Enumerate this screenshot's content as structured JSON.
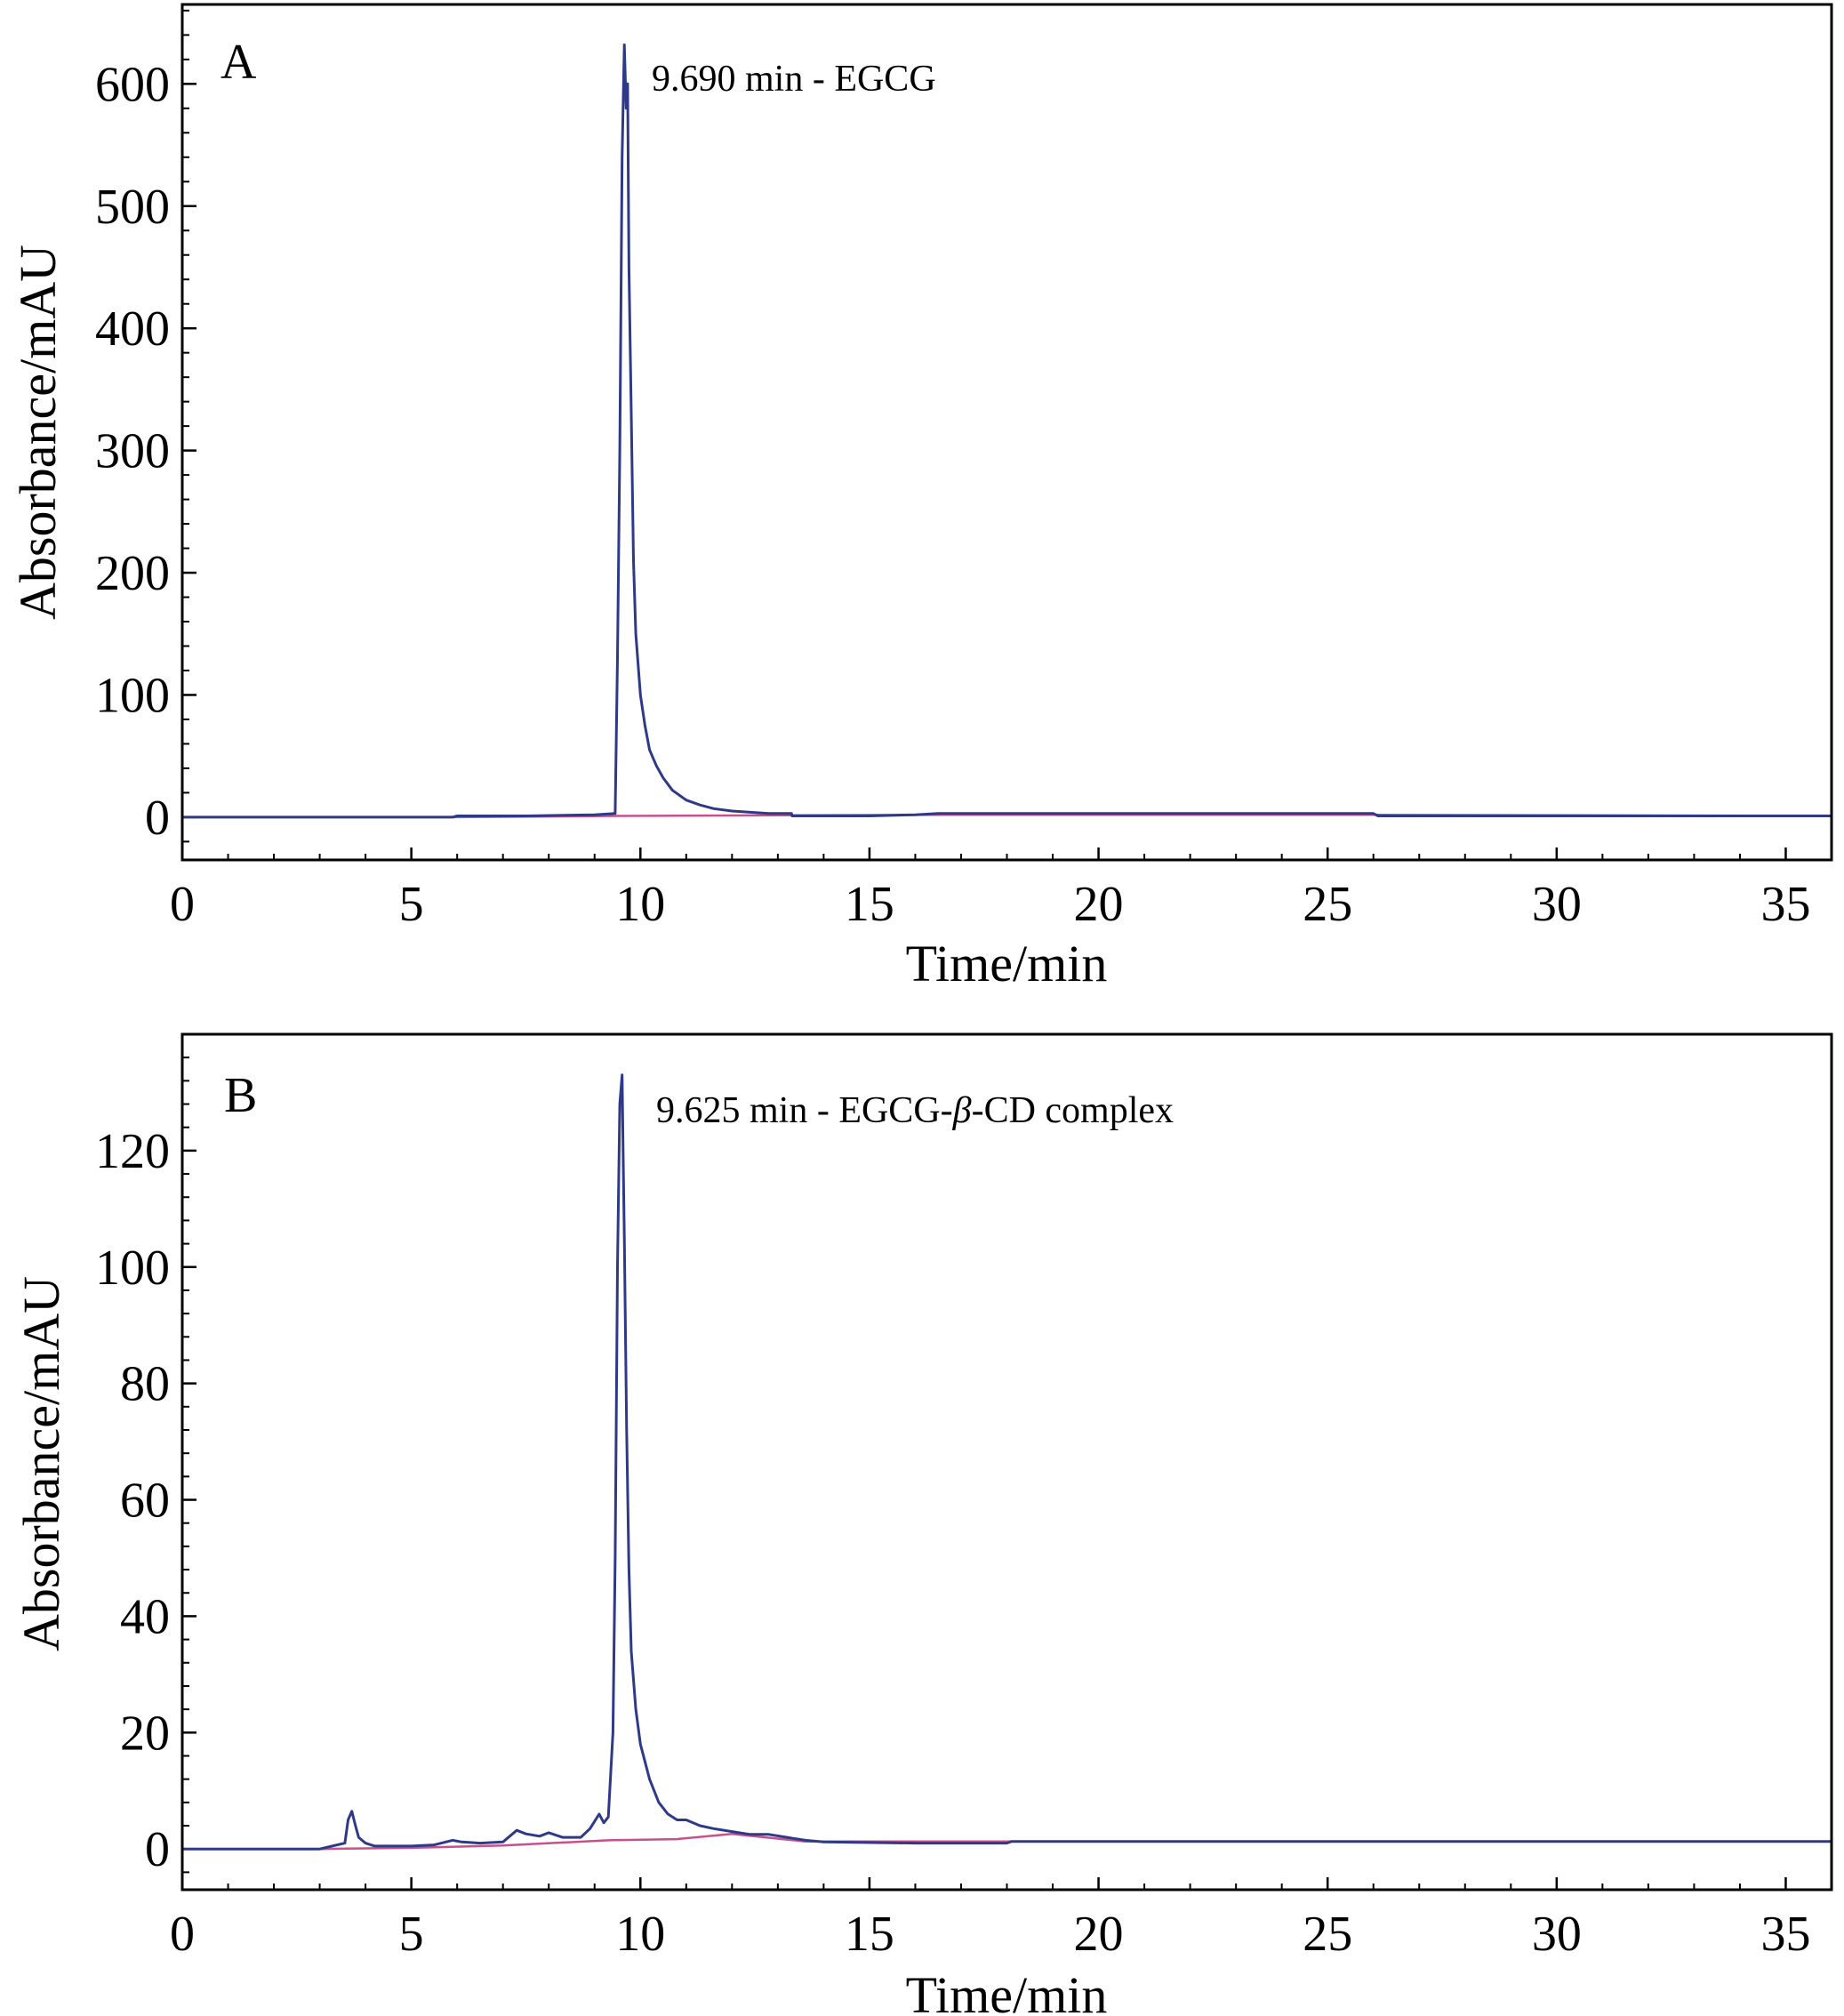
{
  "chart_data": [
    {
      "type": "line",
      "panel_label": "A",
      "annotation": "9.690 min - EGCG",
      "xlabel": "Time/min",
      "ylabel": "Absorbance/mAU",
      "xlim": [
        0,
        36
      ],
      "ylim": [
        -35,
        665
      ],
      "x_ticks": [
        0,
        5,
        10,
        15,
        20,
        25,
        30,
        35
      ],
      "y_ticks": [
        0,
        100,
        200,
        300,
        400,
        500,
        600
      ],
      "colors": {
        "signal": "#2e3a87",
        "baseline": "#c8508c"
      },
      "series": [
        {
          "role": "signal",
          "x": [
            0,
            5.9,
            6.0,
            7.5,
            9.0,
            9.45,
            9.5,
            9.55,
            9.6,
            9.65,
            9.69,
            9.72,
            9.75,
            9.8,
            9.85,
            9.9,
            10.0,
            10.1,
            10.2,
            10.35,
            10.5,
            10.7,
            11.0,
            11.3,
            11.6,
            12.0,
            12.4,
            12.8,
            13.3,
            13.31,
            15.0,
            16.0,
            16.5,
            20.0,
            25.0,
            26.0,
            26.1,
            30.0,
            36.0
          ],
          "y": [
            0,
            0,
            1,
            1,
            2,
            3,
            130,
            300,
            540,
            632,
            580,
            600,
            450,
            330,
            210,
            150,
            100,
            75,
            55,
            42,
            32,
            22,
            14,
            10,
            7,
            5,
            4,
            3,
            3,
            1,
            1,
            2,
            3,
            3,
            3,
            3,
            1,
            1,
            1
          ]
        },
        {
          "role": "baseline",
          "x": [
            0,
            6.0,
            9.5,
            16.5,
            26.0,
            36.0
          ],
          "y": [
            0,
            0,
            1,
            2,
            2,
            1
          ]
        }
      ]
    },
    {
      "type": "line",
      "panel_label": "B",
      "annotation": "9.625 min - EGCG-β-CD complex",
      "annotation_parts": [
        "9.625 min - EGCG-",
        "β",
        "-CD complex"
      ],
      "xlabel": "Time/min",
      "ylabel": "Absorbance/mAU",
      "xlim": [
        0,
        36
      ],
      "ylim": [
        -7,
        140
      ],
      "x_ticks": [
        0,
        5,
        10,
        15,
        20,
        25,
        30,
        35
      ],
      "y_ticks": [
        0,
        20,
        40,
        60,
        80,
        100,
        120
      ],
      "colors": {
        "signal": "#2e3a87",
        "baseline": "#c8508c"
      },
      "series": [
        {
          "role": "signal",
          "x": [
            0,
            3.0,
            3.55,
            3.62,
            3.7,
            3.78,
            3.85,
            4.0,
            4.2,
            4.5,
            5.0,
            5.5,
            5.9,
            6.1,
            6.5,
            7.0,
            7.3,
            7.5,
            7.8,
            8.0,
            8.3,
            8.7,
            8.9,
            9.1,
            9.2,
            9.3,
            9.4,
            9.45,
            9.5,
            9.55,
            9.6,
            9.625,
            9.65,
            9.7,
            9.75,
            9.8,
            9.9,
            10.0,
            10.2,
            10.4,
            10.6,
            10.8,
            11.0,
            11.3,
            11.6,
            12.0,
            12.4,
            12.8,
            13.2,
            13.6,
            14.0,
            16.0,
            18.0,
            18.1,
            25.0,
            36.0
          ],
          "y": [
            0,
            0,
            1,
            5,
            6.5,
            4,
            2,
            1,
            0.5,
            0.5,
            0.5,
            0.7,
            1.5,
            1.2,
            1.0,
            1.2,
            3.2,
            2.6,
            2.2,
            2.8,
            2.0,
            2.0,
            3.5,
            6.0,
            4.5,
            5.5,
            20,
            50,
            100,
            128,
            133,
            118,
            105,
            72,
            48,
            34,
            24,
            18,
            12,
            8,
            6,
            5,
            5,
            4,
            3.5,
            3,
            2.5,
            2.5,
            2,
            1.5,
            1.2,
            1.0,
            1.0,
            1.3,
            1.3,
            1.3
          ]
        },
        {
          "role": "baseline",
          "x": [
            0,
            3.0,
            5.0,
            7.0,
            9.3,
            10.8,
            12.0,
            13.6,
            16.0,
            36.0
          ],
          "y": [
            0,
            0,
            0.2,
            0.6,
            1.5,
            1.7,
            2.6,
            1.3,
            1.3,
            1.3
          ]
        }
      ]
    }
  ]
}
